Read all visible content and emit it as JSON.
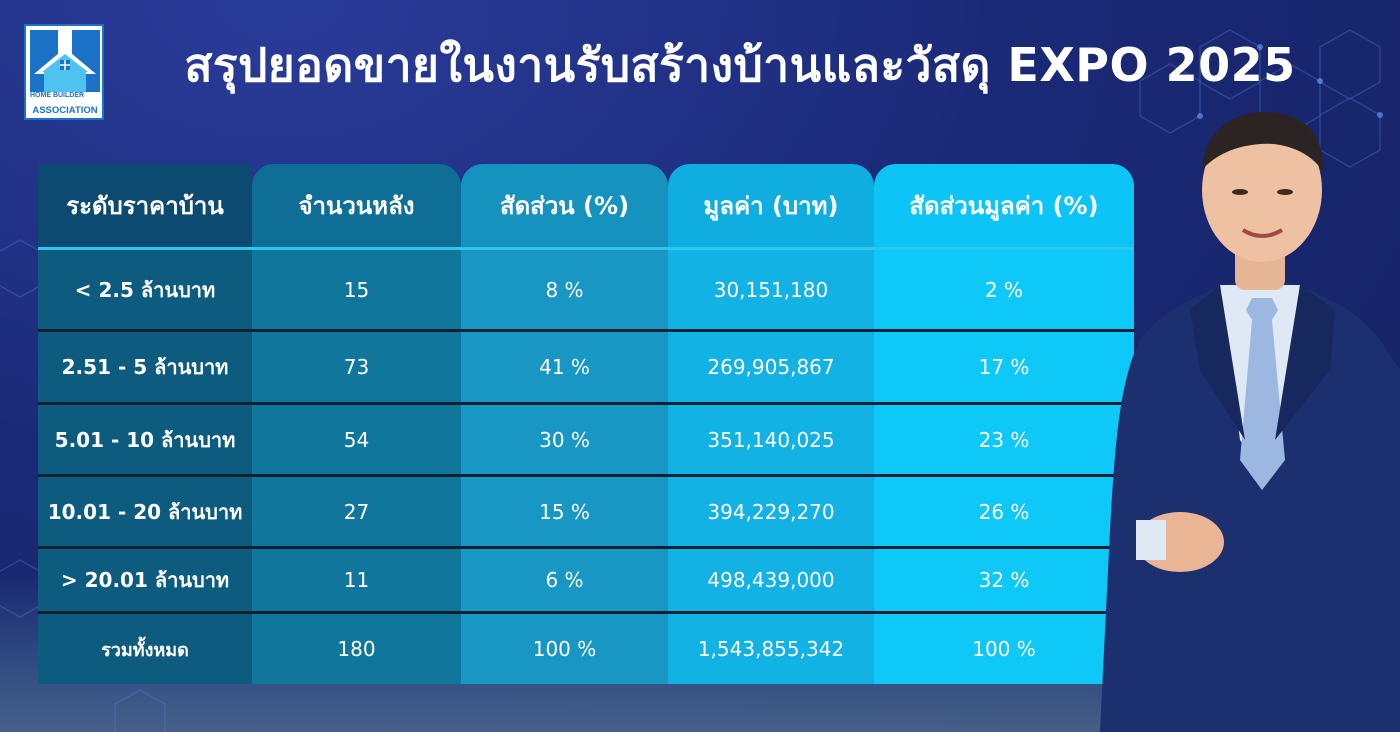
{
  "logo": {
    "line1": "HOME BUILDER",
    "line2": "ASSOCIATION"
  },
  "title": "สรุปยอดขายในงานรับสร้างบ้านและวัสดุ EXPO 2025",
  "table": {
    "headers": [
      "ระดับราคาบ้าน",
      "จำนวนหลัง",
      "สัดส่วน (%)",
      "มูลค่า (บาท)",
      "สัดส่วนมูลค่า (%)"
    ],
    "rows": [
      [
        "< 2.5 ล้านบาท",
        "15",
        "8 %",
        "30,151,180",
        "2 %"
      ],
      [
        "2.51 -  5 ล้านบาท",
        "73",
        "41 %",
        "269,905,867",
        "17 %"
      ],
      [
        "5.01 -  10 ล้านบาท",
        "54",
        "30 %",
        "351,140,025",
        "23 %"
      ],
      [
        "10.01 -  20 ล้านบาท",
        "27",
        "15 %",
        "394,229,270",
        "26 %"
      ],
      [
        "> 20.01 ล้านบาท",
        "11",
        "6 %",
        "498,439,000",
        "32 %"
      ],
      [
        "รวมทั้งหมด",
        "180",
        "100 %",
        "1,543,855,342",
        "100 %"
      ]
    ]
  },
  "colors": {
    "background": "#1b2a78",
    "header_accent": "#2fc7f0",
    "col1": "#0d5c7f",
    "col2": "#11769b",
    "col3": "#1897c5",
    "col4": "#12b2e4",
    "col5": "#0ec8f7"
  }
}
